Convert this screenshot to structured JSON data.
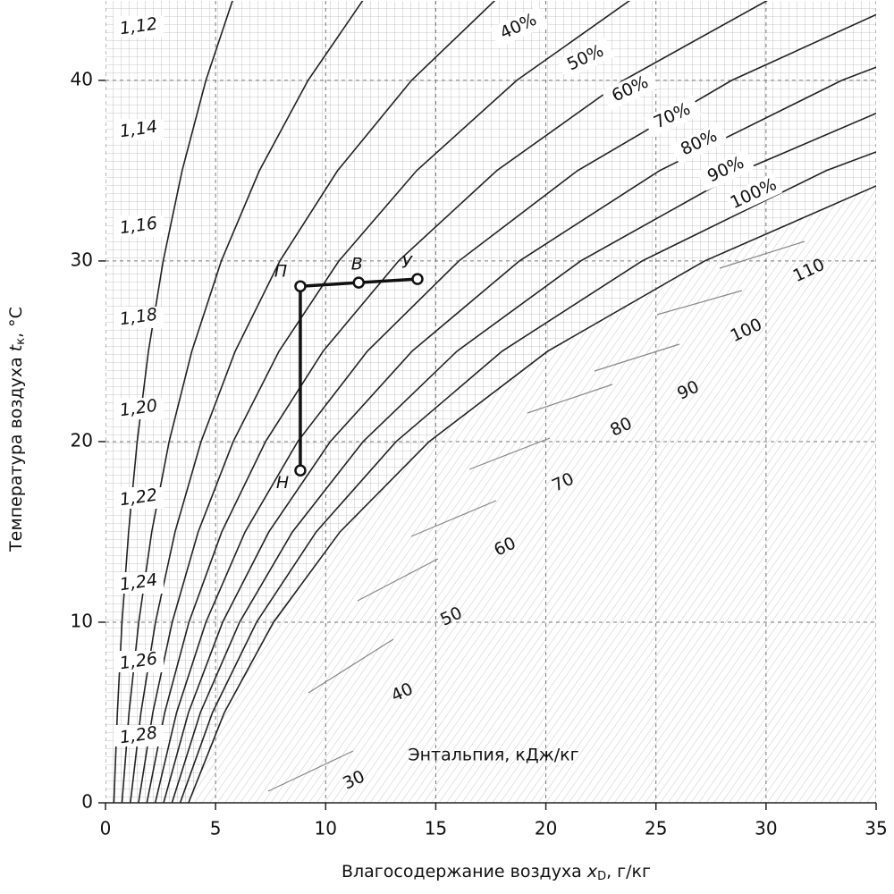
{
  "chart_data": {
    "type": "psychrometric",
    "xlabel": {
      "text": "Влагосодержание воздуха",
      "var": "x",
      "sub": "D",
      "unit": ", г/кг"
    },
    "ylabel": {
      "text": "Температура воздуха",
      "var": "t",
      "sub": "к",
      "unit": ", °C"
    },
    "xlim": [
      0,
      35
    ],
    "ylim": [
      0,
      44.4
    ],
    "xticks": [
      0,
      5,
      10,
      15,
      20,
      25,
      30,
      35
    ],
    "yticks": [
      0,
      10,
      20,
      30,
      40
    ],
    "grid": true,
    "color": "#222222",
    "temperatures": [
      0,
      5,
      10,
      15,
      20,
      25,
      30,
      35,
      40,
      45
    ],
    "series": [
      {
        "values": [
          0.38,
          0.54,
          0.75,
          1.05,
          1.44,
          1.95,
          2.62,
          3.48,
          4.56,
          5.93
        ]
      },
      {
        "values": [
          0.75,
          1.07,
          1.51,
          2.1,
          2.89,
          3.92,
          5.26,
          6.99,
          9.2,
          12.01
        ]
      },
      {
        "values": [
          1.13,
          1.61,
          2.27,
          3.16,
          4.34,
          5.89,
          7.92,
          10.54,
          13.9,
          18.18
        ]
      },
      {
        "name": "40%",
        "values": [
          1.5,
          2.15,
          3.03,
          4.21,
          5.8,
          7.88,
          10.6,
          14.13,
          18.68,
          24.48
        ]
      },
      {
        "name": "50%",
        "values": [
          1.88,
          2.69,
          3.79,
          5.28,
          7.27,
          9.88,
          13.31,
          17.77,
          23.52,
          30.91
        ]
      },
      {
        "name": "60%",
        "values": [
          2.26,
          3.23,
          4.56,
          6.34,
          8.73,
          11.89,
          16.05,
          21.44,
          28.44,
          37.46
        ]
      },
      {
        "name": "70%",
        "values": [
          2.64,
          3.77,
          5.32,
          7.42,
          10.21,
          13.92,
          18.8,
          25.16,
          33.44,
          44.15
        ]
      },
      {
        "name": "80%",
        "values": [
          3.02,
          4.31,
          6.09,
          8.49,
          11.7,
          15.96,
          21.58,
          28.92,
          38.5,
          50.97
        ]
      },
      {
        "name": "90%",
        "values": [
          3.39,
          4.86,
          6.86,
          9.57,
          13.2,
          18.01,
          24.37,
          32.73,
          43.66,
          57.94
        ]
      },
      {
        "name": "100%",
        "values": [
          3.77,
          5.4,
          7.63,
          10.65,
          14.7,
          20.08,
          27.21,
          36.58,
          48.89,
          65.05
        ]
      }
    ],
    "process": {
      "points": [
        {
          "label": "Н",
          "x": 8.85,
          "y": 18.4
        },
        {
          "label": "П",
          "x": 8.85,
          "y": 28.6
        },
        {
          "label": "В",
          "x": 11.5,
          "y": 28.8
        },
        {
          "label": "У",
          "x": 14.17,
          "y": 29.0
        }
      ]
    },
    "density_labels": [
      "1,12",
      "1,14",
      "1,16",
      "1,18",
      "1,20",
      "1,22",
      "1,24",
      "1,26",
      "1,28"
    ],
    "enthalpy_title": "Энтальпия, кДж/кг",
    "enthalpy_labels": [
      "30",
      "40",
      "50",
      "60",
      "70",
      "80",
      "90",
      "100",
      "110"
    ]
  }
}
